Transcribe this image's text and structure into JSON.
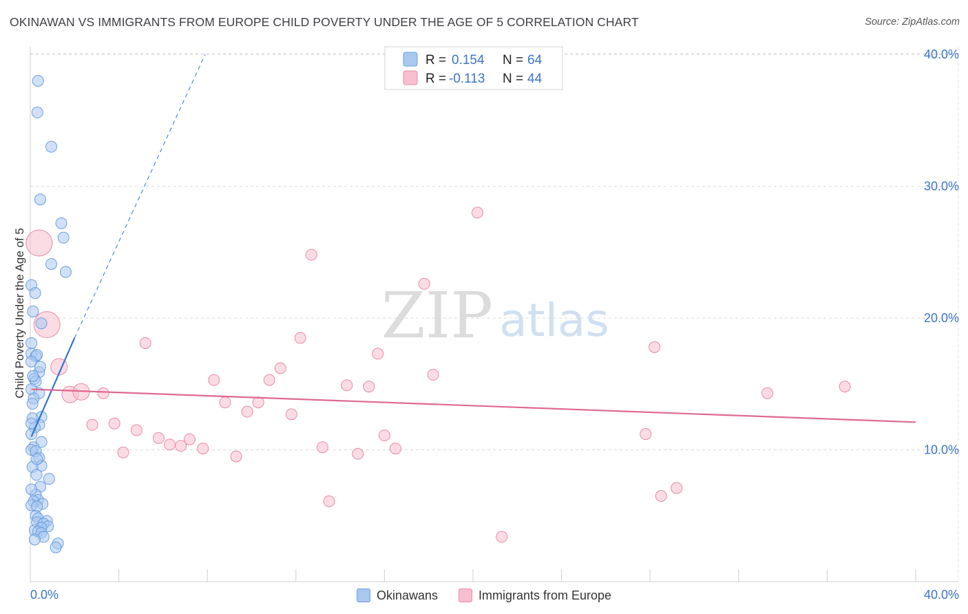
{
  "header": {
    "title": "OKINAWAN VS IMMIGRANTS FROM EUROPE CHILD POVERTY UNDER THE AGE OF 5 CORRELATION CHART",
    "source": "Source: ZipAtlas.com"
  },
  "watermark": {
    "zip": "ZIP",
    "atlas": "atlas"
  },
  "legend": {
    "items": [
      {
        "r_label": "R =",
        "r_value": "0.154",
        "n_label": "N =",
        "n_value": "64"
      },
      {
        "r_label": "R =",
        "r_value": "-0.113",
        "n_label": "N =",
        "n_value": "44"
      }
    ]
  },
  "bottom_legend": {
    "series1": "Okinawans",
    "series2": "Immigrants from Europe"
  },
  "colors": {
    "blue_fill": "#a9c8f0",
    "blue_stroke": "#6b9ee0",
    "blue_line": "#2f74d0",
    "pink_fill": "#f7bfd0",
    "pink_stroke": "#e88aa6",
    "pink_line": "#e0698f",
    "axis_text": "#3a74c8"
  },
  "chart_data": {
    "type": "scatter",
    "title": "OKINAWAN VS IMMIGRANTS FROM EUROPE CHILD POVERTY UNDER THE AGE OF 5 CORRELATION CHART",
    "xlabel": "",
    "ylabel": "Child Poverty Under the Age of 5",
    "xlim": [
      0,
      40
    ],
    "ylim": [
      0,
      41
    ],
    "x_tick_labels": [
      "0.0%",
      "40.0%"
    ],
    "y_ticks": [
      10,
      20,
      30,
      40
    ],
    "y_tick_labels": [
      "10.0%",
      "20.0%",
      "30.0%",
      "40.0%"
    ],
    "grid": true,
    "series": [
      {
        "name": "Okinawans",
        "R": 0.154,
        "N": 64,
        "trend": {
          "x": [
            0.05,
            2.0
          ],
          "y": [
            11.0,
            18.5
          ]
        },
        "trend_extension": {
          "x": [
            2.0,
            7.9
          ],
          "y": [
            18.5,
            40.0
          ]
        },
        "points": [
          {
            "x": 0.35,
            "y": 38.0
          },
          {
            "x": 0.32,
            "y": 35.6
          },
          {
            "x": 0.95,
            "y": 33.0
          },
          {
            "x": 0.45,
            "y": 29.0
          },
          {
            "x": 1.4,
            "y": 27.2
          },
          {
            "x": 1.5,
            "y": 26.1
          },
          {
            "x": 0.95,
            "y": 24.1
          },
          {
            "x": 1.6,
            "y": 23.5
          },
          {
            "x": 0.05,
            "y": 22.5
          },
          {
            "x": 0.22,
            "y": 21.9
          },
          {
            "x": 0.5,
            "y": 19.6
          },
          {
            "x": 0.05,
            "y": 18.1
          },
          {
            "x": 0.05,
            "y": 17.3
          },
          {
            "x": 0.25,
            "y": 17.1
          },
          {
            "x": 0.3,
            "y": 17.2
          },
          {
            "x": 0.05,
            "y": 16.7
          },
          {
            "x": 0.4,
            "y": 15.9
          },
          {
            "x": 0.18,
            "y": 15.4
          },
          {
            "x": 0.25,
            "y": 15.2
          },
          {
            "x": 0.12,
            "y": 15.6
          },
          {
            "x": 0.05,
            "y": 14.6
          },
          {
            "x": 0.4,
            "y": 14.3
          },
          {
            "x": 0.15,
            "y": 13.9
          },
          {
            "x": 0.5,
            "y": 12.5
          },
          {
            "x": 0.1,
            "y": 12.4
          },
          {
            "x": 0.4,
            "y": 11.9
          },
          {
            "x": 0.2,
            "y": 11.7
          },
          {
            "x": 0.05,
            "y": 11.2
          },
          {
            "x": 0.5,
            "y": 10.6
          },
          {
            "x": 0.15,
            "y": 10.2
          },
          {
            "x": 0.05,
            "y": 10.0
          },
          {
            "x": 0.25,
            "y": 9.9
          },
          {
            "x": 0.4,
            "y": 9.4
          },
          {
            "x": 0.5,
            "y": 8.8
          },
          {
            "x": 0.1,
            "y": 8.7
          },
          {
            "x": 0.28,
            "y": 8.1
          },
          {
            "x": 0.85,
            "y": 7.8
          },
          {
            "x": 0.45,
            "y": 7.2
          },
          {
            "x": 0.25,
            "y": 6.6
          },
          {
            "x": 0.35,
            "y": 6.2
          },
          {
            "x": 0.15,
            "y": 6.1
          },
          {
            "x": 0.55,
            "y": 5.9
          },
          {
            "x": 0.05,
            "y": 5.8
          },
          {
            "x": 0.3,
            "y": 5.7
          },
          {
            "x": 0.25,
            "y": 5.0
          },
          {
            "x": 0.35,
            "y": 4.8
          },
          {
            "x": 0.75,
            "y": 4.6
          },
          {
            "x": 0.3,
            "y": 4.5
          },
          {
            "x": 0.6,
            "y": 4.4
          },
          {
            "x": 0.8,
            "y": 4.2
          },
          {
            "x": 0.5,
            "y": 4.1
          },
          {
            "x": 0.2,
            "y": 3.9
          },
          {
            "x": 0.35,
            "y": 3.8
          },
          {
            "x": 0.5,
            "y": 3.7
          },
          {
            "x": 0.6,
            "y": 3.4
          },
          {
            "x": 0.2,
            "y": 3.2
          },
          {
            "x": 1.25,
            "y": 2.9
          },
          {
            "x": 1.15,
            "y": 2.6
          },
          {
            "x": 0.1,
            "y": 13.5
          },
          {
            "x": 0.3,
            "y": 9.3
          },
          {
            "x": 0.05,
            "y": 7.0
          },
          {
            "x": 0.45,
            "y": 16.3
          },
          {
            "x": 0.05,
            "y": 12.0
          },
          {
            "x": 0.12,
            "y": 20.5
          }
        ]
      },
      {
        "name": "Immigrants from Europe",
        "R": -0.113,
        "N": 44,
        "trend": {
          "x": [
            0.05,
            40.0
          ],
          "y": [
            14.6,
            12.1
          ]
        },
        "points": [
          {
            "x": 0.4,
            "y": 25.7,
            "size": "large"
          },
          {
            "x": 0.75,
            "y": 19.5,
            "size": "large"
          },
          {
            "x": 1.3,
            "y": 16.3,
            "size": "medium"
          },
          {
            "x": 1.8,
            "y": 14.2,
            "size": "medium"
          },
          {
            "x": 2.3,
            "y": 14.4,
            "size": "medium"
          },
          {
            "x": 20.2,
            "y": 28.0
          },
          {
            "x": 12.7,
            "y": 24.8
          },
          {
            "x": 17.8,
            "y": 22.6
          },
          {
            "x": 5.2,
            "y": 18.1
          },
          {
            "x": 12.2,
            "y": 18.5
          },
          {
            "x": 28.2,
            "y": 17.8
          },
          {
            "x": 15.7,
            "y": 17.3
          },
          {
            "x": 11.3,
            "y": 16.2
          },
          {
            "x": 18.2,
            "y": 15.7
          },
          {
            "x": 8.3,
            "y": 15.3
          },
          {
            "x": 10.8,
            "y": 15.3
          },
          {
            "x": 14.3,
            "y": 14.9
          },
          {
            "x": 15.3,
            "y": 14.8
          },
          {
            "x": 36.8,
            "y": 14.8
          },
          {
            "x": 33.3,
            "y": 14.3
          },
          {
            "x": 3.3,
            "y": 14.3
          },
          {
            "x": 8.8,
            "y": 13.6
          },
          {
            "x": 10.3,
            "y": 13.6
          },
          {
            "x": 2.8,
            "y": 11.9
          },
          {
            "x": 3.8,
            "y": 12.0
          },
          {
            "x": 9.8,
            "y": 12.9
          },
          {
            "x": 11.8,
            "y": 12.7
          },
          {
            "x": 4.8,
            "y": 11.5
          },
          {
            "x": 16.0,
            "y": 11.1
          },
          {
            "x": 27.8,
            "y": 11.2
          },
          {
            "x": 5.8,
            "y": 10.9
          },
          {
            "x": 7.2,
            "y": 10.8
          },
          {
            "x": 6.3,
            "y": 10.4
          },
          {
            "x": 6.8,
            "y": 10.3
          },
          {
            "x": 13.2,
            "y": 10.2
          },
          {
            "x": 16.5,
            "y": 10.1
          },
          {
            "x": 7.8,
            "y": 10.1
          },
          {
            "x": 4.2,
            "y": 9.8
          },
          {
            "x": 14.8,
            "y": 9.7
          },
          {
            "x": 9.3,
            "y": 9.5
          },
          {
            "x": 29.2,
            "y": 7.1
          },
          {
            "x": 28.5,
            "y": 6.5
          },
          {
            "x": 13.5,
            "y": 6.1
          },
          {
            "x": 21.3,
            "y": 3.4
          }
        ]
      }
    ]
  }
}
